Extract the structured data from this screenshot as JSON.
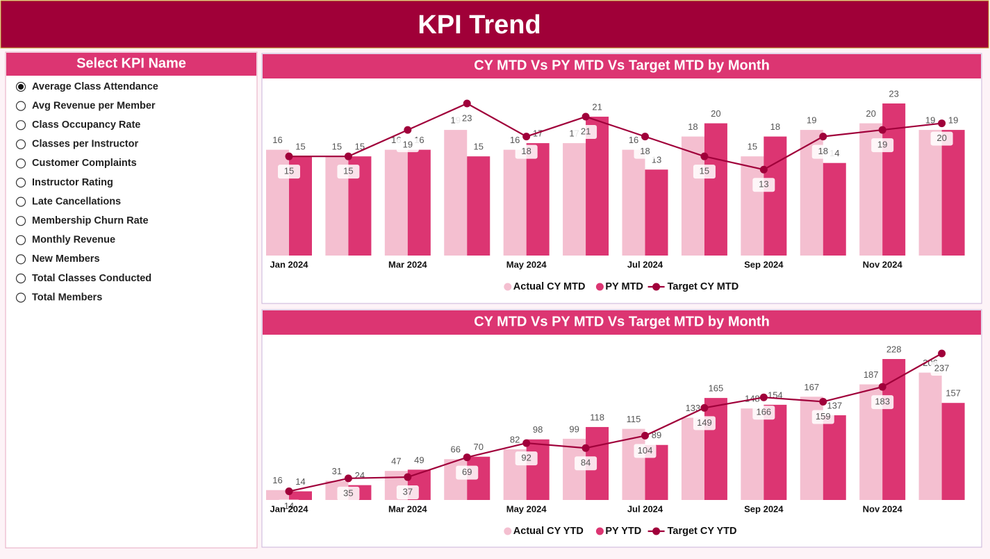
{
  "header": {
    "title": "KPI Trend"
  },
  "slicer": {
    "title": "Select KPI Name",
    "selected": 0,
    "items": [
      "Average Class Attendance",
      "Avg Revenue per Member",
      "Class Occupancy Rate",
      "Classes per Instructor",
      "Customer Complaints",
      "Instructor Rating",
      "Late Cancellations",
      "Membership Churn Rate",
      "Monthly Revenue",
      "New Members",
      "Total Classes Conducted",
      "Total Members"
    ]
  },
  "chart_data": [
    {
      "type": "combo",
      "title": "CY MTD Vs PY MTD Vs Target MTD by Month",
      "categories": [
        "Jan 2024",
        null,
        "Mar 2024",
        null,
        "May 2024",
        null,
        "Jul 2024",
        null,
        "Sep 2024",
        null,
        "Nov 2024",
        null
      ],
      "series": [
        {
          "name": "Actual CY MTD",
          "color": "#f4bfd0",
          "kind": "bar",
          "values": [
            16,
            15,
            16,
            19,
            16,
            17,
            16,
            18,
            15,
            19,
            20,
            19
          ]
        },
        {
          "name": "PY MTD",
          "color": "#dc3572",
          "kind": "bar",
          "values": [
            15,
            15,
            16,
            15,
            17,
            21,
            13,
            20,
            18,
            14,
            23,
            19
          ]
        },
        {
          "name": "Target CY MTD",
          "color": "#a0003a",
          "kind": "line",
          "values": [
            15,
            15,
            19,
            23,
            18,
            21,
            18,
            15,
            13,
            18,
            19,
            20
          ]
        }
      ]
    },
    {
      "type": "combo",
      "title": "CY MTD Vs PY MTD Vs Target MTD by Month",
      "categories": [
        "Jan 2024",
        null,
        "Mar 2024",
        null,
        "May 2024",
        null,
        "Jul 2024",
        null,
        "Sep 2024",
        null,
        "Nov 2024",
        null
      ],
      "series": [
        {
          "name": "Actual CY YTD",
          "color": "#f4bfd0",
          "kind": "bar",
          "values": [
            16,
            31,
            47,
            66,
            82,
            99,
            115,
            133,
            148,
            167,
            187,
            206
          ]
        },
        {
          "name": "PY YTD",
          "color": "#dc3572",
          "kind": "bar",
          "values": [
            14,
            24,
            49,
            70,
            98,
            118,
            89,
            165,
            154,
            137,
            228,
            157
          ]
        },
        {
          "name": "Target CY YTD",
          "color": "#a0003a",
          "kind": "line",
          "values": [
            14,
            35,
            37,
            69,
            92,
            84,
            104,
            149,
            166,
            159,
            183,
            237
          ]
        }
      ]
    }
  ]
}
